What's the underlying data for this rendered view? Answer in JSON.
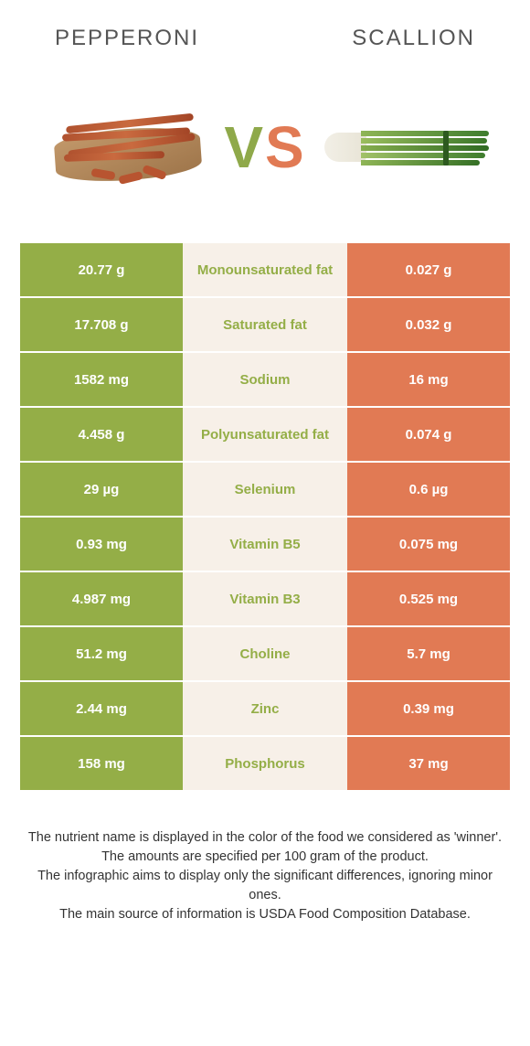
{
  "header": {
    "left": "Pepperoni",
    "right": "Scallion"
  },
  "vs": {
    "v": "V",
    "s": "S"
  },
  "colors": {
    "left": "#94ae47",
    "right": "#e17a54",
    "mid_bg": "#f7f0e8"
  },
  "rows": [
    {
      "left": "20.77 g",
      "label": "Monounsaturated fat",
      "right": "0.027 g",
      "winner": "left"
    },
    {
      "left": "17.708 g",
      "label": "Saturated fat",
      "right": "0.032 g",
      "winner": "left"
    },
    {
      "left": "1582 mg",
      "label": "Sodium",
      "right": "16 mg",
      "winner": "left"
    },
    {
      "left": "4.458 g",
      "label": "Polyunsaturated fat",
      "right": "0.074 g",
      "winner": "left"
    },
    {
      "left": "29 µg",
      "label": "Selenium",
      "right": "0.6 µg",
      "winner": "left"
    },
    {
      "left": "0.93 mg",
      "label": "Vitamin B5",
      "right": "0.075 mg",
      "winner": "left"
    },
    {
      "left": "4.987 mg",
      "label": "Vitamin B3",
      "right": "0.525 mg",
      "winner": "left"
    },
    {
      "left": "51.2 mg",
      "label": "Choline",
      "right": "5.7 mg",
      "winner": "left"
    },
    {
      "left": "2.44 mg",
      "label": "Zinc",
      "right": "0.39 mg",
      "winner": "left"
    },
    {
      "left": "158 mg",
      "label": "Phosphorus",
      "right": "37 mg",
      "winner": "left"
    }
  ],
  "footer": {
    "l1": "The nutrient name is displayed in the color of the food we considered as 'winner'.",
    "l2": "The amounts are specified per 100 gram of the product.",
    "l3": "The infographic aims to display only the significant differences, ignoring minor ones.",
    "l4": "The main source of information is USDA Food Composition Database."
  }
}
